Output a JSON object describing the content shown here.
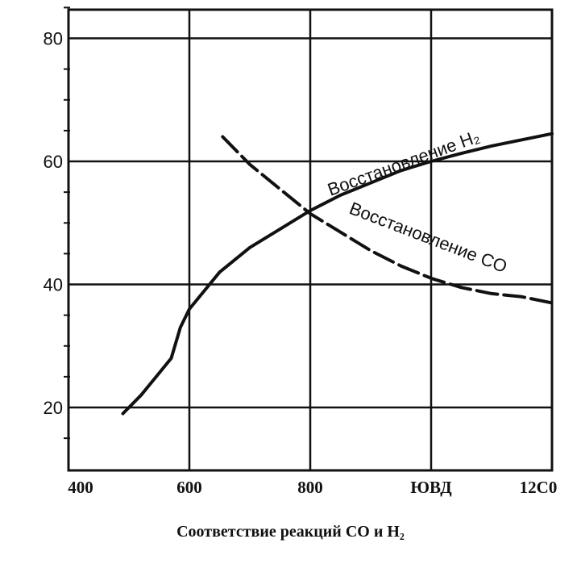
{
  "chart_data": {
    "type": "line",
    "title": "",
    "xlabel": "Соответствие реакций CO и H₂",
    "ylabel": "",
    "xlim": [
      400,
      1200
    ],
    "ylim": [
      10,
      86
    ],
    "grid": true,
    "x_tick_labels": [
      {
        "value": 400,
        "label": "400"
      },
      {
        "value": 600,
        "label": "600"
      },
      {
        "value": 800,
        "label": "800"
      },
      {
        "value": 1000,
        "label": "ЮВД"
      },
      {
        "value": 1200,
        "label": "12С0"
      }
    ],
    "y_tick_labels": [
      {
        "value": 20,
        "label": "20"
      },
      {
        "value": 40,
        "label": "40"
      },
      {
        "value": 60,
        "label": "60"
      },
      {
        "value": 80,
        "label": "80"
      }
    ],
    "series": [
      {
        "name": "Восстановление H₂",
        "style": "solid",
        "x": [
          490,
          520,
          545,
          570,
          585,
          600,
          650,
          700,
          750,
          800,
          850,
          900,
          950,
          1000,
          1050,
          1100,
          1150,
          1200
        ],
        "y": [
          19,
          22,
          25,
          28,
          33,
          36,
          42,
          46,
          49,
          52,
          54.5,
          56.5,
          58.5,
          60,
          61.3,
          62.5,
          63.5,
          64.5
        ]
      },
      {
        "name": "Восстановление CO",
        "style": "dashed",
        "x": [
          655,
          700,
          750,
          800,
          850,
          900,
          950,
          1000,
          1050,
          1100,
          1150,
          1200
        ],
        "y": [
          64,
          59.5,
          55.5,
          51.5,
          48.5,
          45.5,
          43,
          41,
          39.5,
          38.5,
          38,
          37
        ]
      }
    ]
  }
}
